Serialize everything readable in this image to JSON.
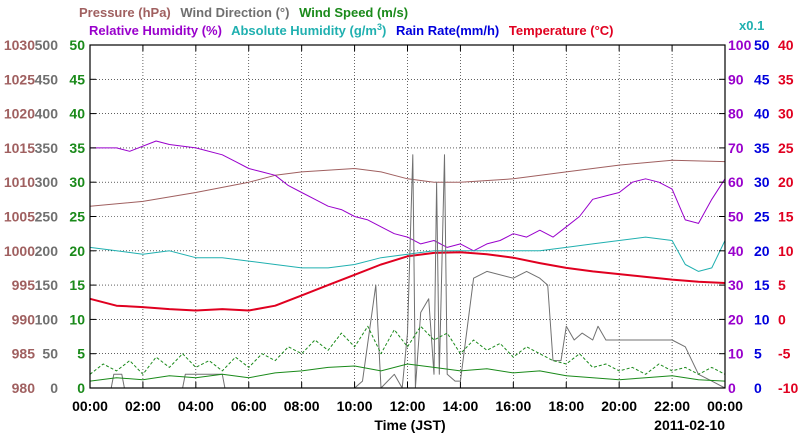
{
  "chart_data": {
    "type": "line",
    "date": "2011-02-10",
    "xlabel": "Time (JST)",
    "x_ticks": [
      "00:00",
      "02:00",
      "04:00",
      "06:00",
      "08:00",
      "10:00",
      "12:00",
      "14:00",
      "16:00",
      "18:00",
      "20:00",
      "22:00",
      "00:00"
    ],
    "x_range_hours": [
      0,
      24
    ],
    "axes": {
      "pressure": {
        "ticks": [
          "1030",
          "1025",
          "1020",
          "1015",
          "1010",
          "1005",
          "1000",
          "995",
          "990",
          "985",
          "980"
        ],
        "range": [
          980,
          1030
        ],
        "color": "#a06060"
      },
      "wind_direction": {
        "ticks": [
          "500",
          "450",
          "400",
          "350",
          "300",
          "250",
          "200",
          "150",
          "100",
          "50",
          "0"
        ],
        "range": [
          0,
          500
        ],
        "color": "#707070"
      },
      "wind_speed": {
        "ticks": [
          "50",
          "45",
          "40",
          "35",
          "30",
          "25",
          "20",
          "15",
          "10",
          "5",
          "0"
        ],
        "range": [
          0,
          50
        ],
        "color": "#1a8a1a"
      },
      "relative_humidity": {
        "ticks": [
          "100",
          "90",
          "80",
          "70",
          "60",
          "50",
          "40",
          "30",
          "20",
          "10",
          "0"
        ],
        "range": [
          0,
          100
        ],
        "color": "#9900cc"
      },
      "rain_rate": {
        "ticks": [
          "50",
          "45",
          "40",
          "35",
          "30",
          "25",
          "20",
          "15",
          "10",
          "5",
          "0"
        ],
        "range": [
          0,
          50
        ],
        "color": "#0000dd",
        "unit_note": "x0.1"
      },
      "temperature": {
        "ticks": [
          "40",
          "35",
          "30",
          "25",
          "20",
          "15",
          "10",
          "5",
          "0",
          "-5",
          "-10"
        ],
        "range": [
          -10,
          40
        ],
        "color": "#e00020"
      }
    },
    "legend": {
      "pressure": "Pressure (hPa)",
      "wind_direction": "Wind Direction (°)",
      "wind_speed": "Wind Speed (m/s)",
      "relative_humidity": "Relative Humidity (%)",
      "absolute_humidity": "Absolute Humidity (g/m",
      "absolute_humidity_sup": "3",
      "absolute_humidity_close": ")",
      "rain_rate": "Rain Rate(mm/h)",
      "temperature": "Temperature (°C)",
      "rain_scale": "x0.1"
    },
    "series": [
      {
        "name": "Pressure",
        "axis": "pressure",
        "color": "#a06060",
        "width": 1,
        "points": [
          [
            0,
            1006.5
          ],
          [
            2,
            1007.2
          ],
          [
            4,
            1008.5
          ],
          [
            6,
            1010.0
          ],
          [
            7,
            1011
          ],
          [
            8,
            1011.5
          ],
          [
            10,
            1012
          ],
          [
            11,
            1011.5
          ],
          [
            12,
            1010.5
          ],
          [
            13,
            1010
          ],
          [
            14,
            1010
          ],
          [
            16,
            1010.5
          ],
          [
            18,
            1011.5
          ],
          [
            20,
            1012.5
          ],
          [
            22,
            1013.2
          ],
          [
            24,
            1013
          ]
        ]
      },
      {
        "name": "Relative Humidity",
        "axis": "relative_humidity",
        "color": "#9900cc",
        "width": 1,
        "points": [
          [
            0,
            70
          ],
          [
            1,
            70
          ],
          [
            1.5,
            69
          ],
          [
            2.5,
            72
          ],
          [
            3,
            71
          ],
          [
            4,
            70
          ],
          [
            5,
            68
          ],
          [
            5.5,
            66
          ],
          [
            6,
            64
          ],
          [
            6.5,
            63
          ],
          [
            7,
            62
          ],
          [
            7.5,
            59
          ],
          [
            8,
            57
          ],
          [
            8.5,
            55
          ],
          [
            9,
            53
          ],
          [
            9.5,
            52
          ],
          [
            10,
            50
          ],
          [
            10.5,
            49
          ],
          [
            11,
            47
          ],
          [
            11.5,
            45
          ],
          [
            12,
            44
          ],
          [
            12.5,
            42
          ],
          [
            13,
            43
          ],
          [
            13.5,
            41
          ],
          [
            14,
            42
          ],
          [
            14.5,
            40
          ],
          [
            15,
            42
          ],
          [
            15.5,
            43
          ],
          [
            16,
            45
          ],
          [
            16.5,
            44
          ],
          [
            17,
            46
          ],
          [
            17.5,
            44
          ],
          [
            18,
            47
          ],
          [
            18.5,
            50
          ],
          [
            19,
            55
          ],
          [
            19.5,
            56
          ],
          [
            20,
            57
          ],
          [
            20.5,
            60
          ],
          [
            21,
            61
          ],
          [
            21.5,
            60
          ],
          [
            22,
            58
          ],
          [
            22.5,
            49
          ],
          [
            23,
            48
          ],
          [
            23.5,
            55
          ],
          [
            24,
            61
          ]
        ]
      },
      {
        "name": "Absolute Humidity",
        "axis": "rain_rate",
        "color": "#20b0b0",
        "width": 1,
        "points": [
          [
            0,
            20.5
          ],
          [
            1,
            20
          ],
          [
            2,
            19.5
          ],
          [
            3,
            20
          ],
          [
            4,
            19
          ],
          [
            5,
            19
          ],
          [
            6,
            18.5
          ],
          [
            7,
            18
          ],
          [
            8,
            17.5
          ],
          [
            9,
            17.5
          ],
          [
            10,
            18
          ],
          [
            11,
            19
          ],
          [
            12,
            19.5
          ],
          [
            13,
            20
          ],
          [
            14,
            20
          ],
          [
            15,
            20
          ],
          [
            16,
            20
          ],
          [
            17,
            20
          ],
          [
            18,
            20.5
          ],
          [
            19,
            21
          ],
          [
            20,
            21.5
          ],
          [
            21,
            22
          ],
          [
            22,
            21.5
          ],
          [
            22.5,
            18
          ],
          [
            23,
            17
          ],
          [
            23.5,
            17.5
          ],
          [
            24,
            21.5
          ]
        ]
      },
      {
        "name": "Temperature",
        "axis": "temperature",
        "color": "#e00020",
        "width": 2,
        "points": [
          [
            0,
            3
          ],
          [
            1,
            2
          ],
          [
            2,
            1.8
          ],
          [
            3,
            1.5
          ],
          [
            4,
            1.3
          ],
          [
            5,
            1.5
          ],
          [
            6,
            1.3
          ],
          [
            7,
            2
          ],
          [
            8,
            3.5
          ],
          [
            9,
            5
          ],
          [
            10,
            6.5
          ],
          [
            11,
            8
          ],
          [
            12,
            9.2
          ],
          [
            13,
            9.7
          ],
          [
            14,
            9.8
          ],
          [
            15,
            9.5
          ],
          [
            16,
            9.0
          ],
          [
            17,
            8.2
          ],
          [
            18,
            7.5
          ],
          [
            19,
            7.0
          ],
          [
            20,
            6.6
          ],
          [
            21,
            6.2
          ],
          [
            22,
            5.8
          ],
          [
            23,
            5.5
          ],
          [
            24,
            5.3
          ]
        ]
      },
      {
        "name": "Wind Direction",
        "axis": "wind_direction",
        "color": "#707070",
        "width": 1,
        "points": [
          [
            0,
            0
          ],
          [
            0.8,
            0
          ],
          [
            0.9,
            20
          ],
          [
            1.2,
            20
          ],
          [
            1.3,
            0
          ],
          [
            3.5,
            0
          ],
          [
            3.6,
            20
          ],
          [
            5,
            20
          ],
          [
            5.1,
            0
          ],
          [
            8.5,
            0
          ],
          [
            9,
            0
          ],
          [
            9.5,
            0
          ],
          [
            10,
            0
          ],
          [
            10.3,
            10
          ],
          [
            10.8,
            150
          ],
          [
            11,
            0
          ],
          [
            11.5,
            20
          ],
          [
            11.8,
            0
          ],
          [
            12,
            80
          ],
          [
            12.2,
            340
          ],
          [
            12.3,
            0
          ],
          [
            12.5,
            110
          ],
          [
            12.8,
            130
          ],
          [
            13,
            20
          ],
          [
            13.1,
            300
          ],
          [
            13.2,
            20
          ],
          [
            13.4,
            340
          ],
          [
            13.5,
            20
          ],
          [
            13.8,
            10
          ],
          [
            14,
            10
          ],
          [
            14.5,
            160
          ],
          [
            15,
            170
          ],
          [
            16,
            160
          ],
          [
            16.5,
            170
          ],
          [
            17,
            160
          ],
          [
            17.3,
            150
          ],
          [
            17.5,
            40
          ],
          [
            17.8,
            40
          ],
          [
            18,
            90
          ],
          [
            18.3,
            70
          ],
          [
            18.6,
            80
          ],
          [
            19,
            70
          ],
          [
            19.2,
            90
          ],
          [
            19.5,
            70
          ],
          [
            20,
            70
          ],
          [
            22,
            70
          ],
          [
            22.5,
            60
          ],
          [
            23,
            20
          ],
          [
            23.5,
            10
          ],
          [
            24,
            0
          ]
        ]
      },
      {
        "name": "Wind Speed (avg)",
        "axis": "wind_speed",
        "color": "#1a8a1a",
        "width": 1,
        "points": [
          [
            0,
            1
          ],
          [
            1,
            1.5
          ],
          [
            2,
            1.2
          ],
          [
            3,
            1.8
          ],
          [
            4,
            1.5
          ],
          [
            5,
            2
          ],
          [
            6,
            1.5
          ],
          [
            7,
            2.2
          ],
          [
            8,
            2.5
          ],
          [
            9,
            3
          ],
          [
            10,
            3.2
          ],
          [
            11,
            2.5
          ],
          [
            12,
            3.5
          ],
          [
            13,
            3
          ],
          [
            14,
            2.5
          ],
          [
            15,
            2.8
          ],
          [
            16,
            2.2
          ],
          [
            17,
            2.5
          ],
          [
            18,
            1.8
          ],
          [
            19,
            1.5
          ],
          [
            20,
            1.2
          ],
          [
            21,
            1.5
          ],
          [
            22,
            1.8
          ],
          [
            23,
            1.2
          ],
          [
            24,
            1
          ]
        ]
      },
      {
        "name": "Wind Speed (gust)",
        "axis": "wind_speed",
        "color": "#1a8a1a",
        "width": 1,
        "dashed": true,
        "points": [
          [
            0,
            2
          ],
          [
            0.5,
            3.5
          ],
          [
            1,
            2.5
          ],
          [
            1.5,
            4
          ],
          [
            2,
            2
          ],
          [
            2.5,
            4.5
          ],
          [
            3,
            3
          ],
          [
            3.5,
            5
          ],
          [
            4,
            3
          ],
          [
            4.5,
            4
          ],
          [
            5,
            2.5
          ],
          [
            5.5,
            4.5
          ],
          [
            6,
            3
          ],
          [
            6.5,
            5
          ],
          [
            7,
            4
          ],
          [
            7.5,
            6
          ],
          [
            8,
            5
          ],
          [
            8.5,
            7
          ],
          [
            9,
            5.5
          ],
          [
            9.5,
            8
          ],
          [
            10,
            6
          ],
          [
            10.5,
            9
          ],
          [
            11,
            5
          ],
          [
            11.5,
            8.5
          ],
          [
            12,
            6
          ],
          [
            12.5,
            9
          ],
          [
            13,
            7
          ],
          [
            13.5,
            8
          ],
          [
            14,
            5
          ],
          [
            14.5,
            7
          ],
          [
            15,
            5.5
          ],
          [
            15.5,
            6.5
          ],
          [
            16,
            4.5
          ],
          [
            16.5,
            6
          ],
          [
            17,
            5
          ],
          [
            17.5,
            4
          ],
          [
            18,
            3.5
          ],
          [
            18.5,
            5
          ],
          [
            19,
            3
          ],
          [
            19.5,
            3.5
          ],
          [
            20,
            2.5
          ],
          [
            20.5,
            3
          ],
          [
            21,
            2
          ],
          [
            21.5,
            3.5
          ],
          [
            22,
            2.5
          ],
          [
            22.5,
            3
          ],
          [
            23,
            2
          ],
          [
            23.5,
            3
          ],
          [
            24,
            2
          ]
        ]
      }
    ]
  }
}
